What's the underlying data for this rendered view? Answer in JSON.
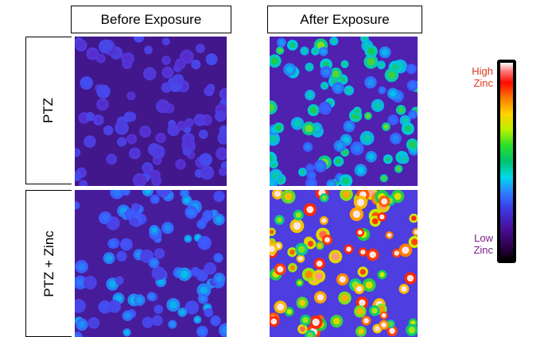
{
  "columns": {
    "before": "Before Exposure",
    "after": "After Exposure"
  },
  "rows": {
    "ptz": "PTZ",
    "ptz_zinc": "PTZ + Zinc"
  },
  "legend": {
    "high_line1": "High",
    "high_line2": "Zinc",
    "low_line1": "Low",
    "low_line2": "Zinc",
    "high_color": "#e0381e",
    "low_color": "#7b1f86"
  },
  "panels": [
    {
      "id": "before-ptz",
      "level": 0.12
    },
    {
      "id": "after-ptz",
      "level": 0.35
    },
    {
      "id": "before-ptz-zinc",
      "level": 0.22
    },
    {
      "id": "after-ptz-zinc",
      "level": 0.75
    }
  ]
}
